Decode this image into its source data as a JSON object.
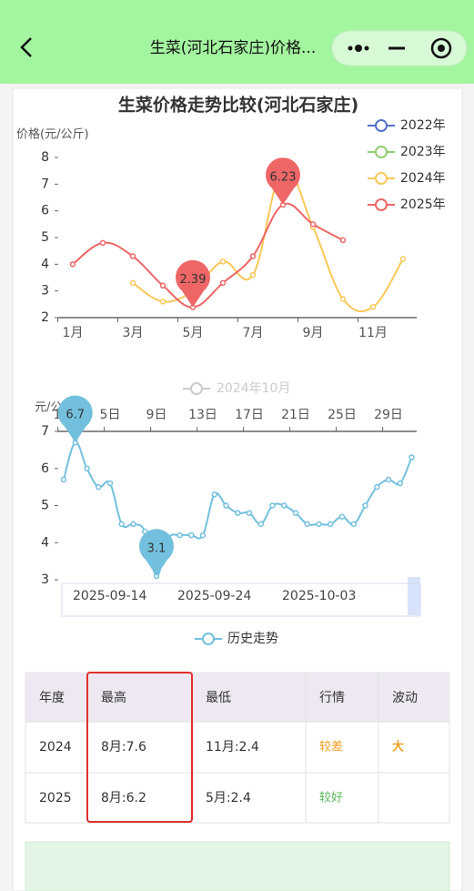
{
  "header": {
    "title": "生菜(河北石家庄)价格..."
  },
  "chart_data": [
    {
      "type": "line",
      "title": "生菜价格走势比较(河北石家庄)",
      "y_label": "价格(元/公斤)",
      "categories": [
        "1月",
        null,
        "3月",
        null,
        "5月",
        null,
        "7月",
        null,
        "9月",
        null,
        "11月",
        null
      ],
      "ylim": [
        2,
        8
      ],
      "yticks": [
        2,
        3,
        4,
        5,
        6,
        7,
        8
      ],
      "legend": "top-right",
      "series": [
        {
          "name": "2022年",
          "color": "#5470c6",
          "values": [
            null,
            null,
            null,
            null,
            null,
            null,
            null,
            null,
            null,
            null,
            null,
            null
          ]
        },
        {
          "name": "2023年",
          "color": "#91cc75",
          "values": [
            null,
            null,
            null,
            null,
            null,
            null,
            null,
            null,
            null,
            null,
            null,
            null
          ]
        },
        {
          "name": "2024年",
          "color": "#fac858",
          "values": [
            null,
            null,
            3.3,
            2.6,
            3.0,
            4.1,
            3.6,
            7.6,
            5.4,
            2.7,
            2.4,
            4.2
          ]
        },
        {
          "name": "2025年",
          "color": "#ee6666",
          "values": [
            4.0,
            4.8,
            4.3,
            3.2,
            2.39,
            3.3,
            4.3,
            6.23,
            5.5,
            4.9,
            null,
            null
          ],
          "mark_points": [
            7,
            4
          ]
        }
      ]
    },
    {
      "type": "line",
      "subtitle": "2024年10月",
      "y_label": "元/公斤",
      "categories": [
        "1日",
        null,
        null,
        null,
        "5日",
        null,
        null,
        null,
        "9日",
        null,
        null,
        null,
        "13日",
        null,
        null,
        null,
        "17日",
        null,
        null,
        null,
        "21日",
        null,
        null,
        null,
        "25日",
        null,
        null,
        null,
        "29日",
        null,
        null
      ],
      "ylim": [
        3,
        7
      ],
      "yticks": [
        3,
        4,
        5,
        6,
        7
      ],
      "datazoom_labels": [
        "2025-09-14",
        "2025-09-24",
        "2025-10-03"
      ],
      "series": [
        {
          "name": "历史走势",
          "color": "#73c0de",
          "values": [
            5.7,
            6.7,
            6.0,
            5.5,
            5.6,
            4.5,
            4.5,
            4.3,
            3.1,
            4.1,
            4.2,
            4.2,
            4.2,
            5.3,
            5.0,
            4.8,
            4.8,
            4.5,
            5.0,
            5.0,
            4.8,
            4.5,
            4.5,
            4.5,
            4.7,
            4.5,
            5.0,
            5.5,
            5.7,
            5.6,
            6.3
          ],
          "mark_points": [
            1,
            8
          ]
        }
      ]
    }
  ],
  "table": {
    "header": [
      "年度",
      "最高",
      "最低",
      "行情",
      "波动"
    ],
    "rows": [
      [
        "2024",
        "8月:7.6",
        "11月:2.4",
        "较差",
        "大"
      ],
      [
        "2025",
        "8月:6.2",
        "5月:2.4",
        "较好"
      ]
    ]
  }
}
